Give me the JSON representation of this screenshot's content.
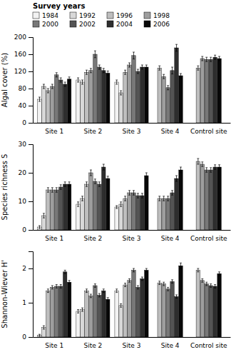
{
  "chart_data": [
    {
      "type": "bar",
      "categories": [
        "Site 1",
        "Site 2",
        "Site 3",
        "Site 4",
        "Control site"
      ],
      "series": [
        {
          "name": "1984",
          "color": "#f2f2f2",
          "values": [
            55,
            100,
            95,
            null,
            null
          ],
          "errors": [
            5,
            5,
            5,
            null,
            null
          ]
        },
        {
          "name": "1992",
          "color": "#d8d8d8",
          "values": [
            85,
            95,
            70,
            null,
            null
          ],
          "errors": [
            5,
            5,
            5,
            null,
            null
          ]
        },
        {
          "name": "1996",
          "color": "#bebebe",
          "values": [
            75,
            118,
            118,
            128,
            128
          ],
          "errors": [
            5,
            5,
            5,
            5,
            5
          ]
        },
        {
          "name": "1998",
          "color": "#9e9e9e",
          "values": [
            85,
            122,
            135,
            108,
            150
          ],
          "errors": [
            5,
            5,
            5,
            5,
            5
          ]
        },
        {
          "name": "2000",
          "color": "#787878",
          "values": [
            112,
            160,
            157,
            82,
            148
          ],
          "errors": [
            5,
            8,
            8,
            5,
            5
          ]
        },
        {
          "name": "2002",
          "color": "#545454",
          "values": [
            100,
            130,
            120,
            122,
            148
          ],
          "errors": [
            5,
            5,
            5,
            8,
            5
          ]
        },
        {
          "name": "2004",
          "color": "#2e2e2e",
          "values": [
            90,
            122,
            130,
            175,
            153
          ],
          "errors": [
            5,
            5,
            5,
            8,
            5
          ]
        },
        {
          "name": "2006",
          "color": "#080808",
          "values": [
            102,
            116,
            130,
            110,
            150
          ],
          "errors": [
            5,
            5,
            5,
            5,
            5
          ]
        }
      ],
      "ylabel": "Algal cover (%)",
      "ylim": [
        0,
        200
      ],
      "yticks": [
        0,
        40,
        80,
        120,
        160,
        200
      ],
      "legend": "upper left",
      "legend_title": "Survey years"
    },
    {
      "type": "bar",
      "categories": [
        "Site 1",
        "Site 2",
        "Site 3",
        "Site 4",
        "Control site"
      ],
      "series": [
        {
          "name": "1984",
          "color": "#f2f2f2",
          "values": [
            1,
            9,
            8,
            null,
            null
          ],
          "errors": [
            0.5,
            0.8,
            0.5,
            null,
            null
          ]
        },
        {
          "name": "1992",
          "color": "#d8d8d8",
          "values": [
            5,
            11,
            9,
            null,
            null
          ],
          "errors": [
            0.8,
            0.8,
            0.8,
            null,
            null
          ]
        },
        {
          "name": "1996",
          "color": "#bebebe",
          "values": [
            14,
            16,
            11,
            11,
            24
          ],
          "errors": [
            0.8,
            0.8,
            0.8,
            0.8,
            1.0
          ]
        },
        {
          "name": "1998",
          "color": "#9e9e9e",
          "values": [
            14,
            20,
            13,
            11,
            23
          ],
          "errors": [
            0.8,
            1.0,
            0.8,
            0.8,
            0.8
          ]
        },
        {
          "name": "2000",
          "color": "#787878",
          "values": [
            14,
            17,
            13,
            11,
            21
          ],
          "errors": [
            0.8,
            0.8,
            0.8,
            0.8,
            0.8
          ]
        },
        {
          "name": "2002",
          "color": "#545454",
          "values": [
            15,
            16,
            12,
            13,
            21
          ],
          "errors": [
            0.8,
            0.8,
            0.8,
            0.8,
            0.8
          ]
        },
        {
          "name": "2004",
          "color": "#2e2e2e",
          "values": [
            16,
            22,
            12,
            18,
            22
          ],
          "errors": [
            0.8,
            1.0,
            0.8,
            1.0,
            0.8
          ]
        },
        {
          "name": "2006",
          "color": "#080808",
          "values": [
            16,
            18,
            19,
            21,
            22
          ],
          "errors": [
            0.8,
            0.8,
            1.0,
            1.0,
            0.8
          ]
        }
      ],
      "ylabel": "Species richness S",
      "ylim": [
        0,
        30
      ],
      "yticks": [
        0,
        10,
        20,
        30
      ]
    },
    {
      "type": "bar",
      "categories": [
        "Site 1",
        "Site 2",
        "Site 3",
        "Site 4",
        "Control site"
      ],
      "series": [
        {
          "name": "1984",
          "color": "#f2f2f2",
          "values": [
            0.05,
            0.75,
            1.35,
            null,
            null
          ],
          "errors": [
            0.03,
            0.05,
            0.05,
            null,
            null
          ]
        },
        {
          "name": "1992",
          "color": "#d8d8d8",
          "values": [
            0.28,
            0.8,
            0.92,
            null,
            null
          ],
          "errors": [
            0.05,
            0.05,
            0.05,
            null,
            null
          ]
        },
        {
          "name": "1996",
          "color": "#bebebe",
          "values": [
            1.35,
            1.35,
            1.52,
            1.58,
            1.95
          ],
          "errors": [
            0.05,
            0.05,
            0.05,
            0.05,
            0.05
          ]
        },
        {
          "name": "1998",
          "color": "#9e9e9e",
          "values": [
            1.45,
            1.2,
            1.65,
            1.55,
            1.65
          ],
          "errors": [
            0.05,
            0.05,
            0.05,
            0.05,
            0.05
          ]
        },
        {
          "name": "2000",
          "color": "#787878",
          "values": [
            1.48,
            1.5,
            1.95,
            1.4,
            1.55
          ],
          "errors": [
            0.05,
            0.05,
            0.05,
            0.05,
            0.05
          ]
        },
        {
          "name": "2002",
          "color": "#545454",
          "values": [
            1.48,
            1.22,
            1.45,
            1.62,
            1.5
          ],
          "errors": [
            0.05,
            0.05,
            0.05,
            0.05,
            0.05
          ]
        },
        {
          "name": "2004",
          "color": "#2e2e2e",
          "values": [
            1.9,
            1.35,
            1.7,
            1.18,
            1.48
          ],
          "errors": [
            0.05,
            0.05,
            0.05,
            0.05,
            0.05
          ]
        },
        {
          "name": "2006",
          "color": "#080808",
          "values": [
            1.6,
            1.1,
            1.95,
            2.08,
            1.85
          ],
          "errors": [
            0.05,
            0.05,
            0.05,
            0.08,
            0.05
          ]
        }
      ],
      "ylabel": "Shannon-Wiever H'",
      "ylim": [
        0,
        2.5
      ],
      "yticks": [
        0,
        1,
        2
      ]
    }
  ]
}
